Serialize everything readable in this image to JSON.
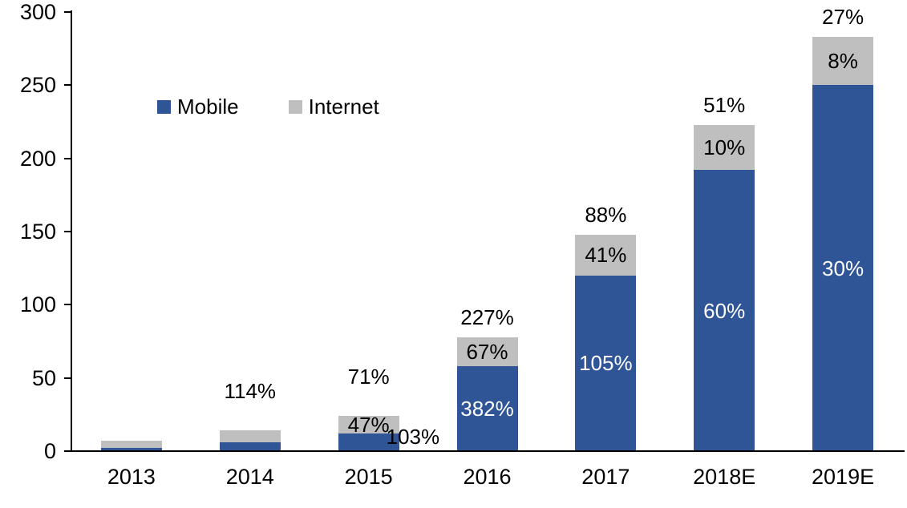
{
  "chart_data": {
    "type": "bar",
    "stacked": true,
    "title": "",
    "categories": [
      "2013",
      "2014",
      "2015",
      "2016",
      "2017",
      "2018E",
      "2019E"
    ],
    "series": [
      {
        "name": "Mobile",
        "color": "#2F5597",
        "values": [
          2,
          6,
          12,
          58,
          120,
          192,
          250
        ],
        "growth_labels": [
          "",
          "",
          "103%",
          "382%",
          "105%",
          "60%",
          "30%"
        ]
      },
      {
        "name": "Internet",
        "color": "#BFBFBF",
        "values": [
          5,
          8,
          12,
          20,
          28,
          31,
          33
        ],
        "growth_labels": [
          "",
          "",
          "47%",
          "67%",
          "41%",
          "10%",
          "8%"
        ]
      }
    ],
    "total_growth_labels": [
      "",
      "114%",
      "71%",
      "227%",
      "88%",
      "51%",
      "27%"
    ],
    "ylim": [
      0,
      300
    ],
    "yticks": [
      0,
      50,
      100,
      150,
      200,
      250,
      300
    ],
    "grid": false,
    "legend": {
      "position": "top-left",
      "items": [
        "Mobile",
        "Internet"
      ]
    }
  }
}
